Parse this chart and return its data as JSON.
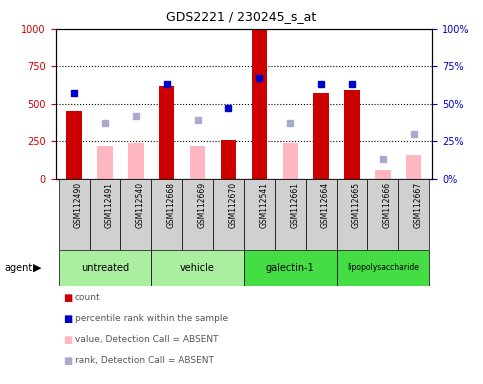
{
  "title": "GDS2221 / 230245_s_at",
  "samples": [
    "GSM112490",
    "GSM112491",
    "GSM112540",
    "GSM112668",
    "GSM112669",
    "GSM112670",
    "GSM112541",
    "GSM112661",
    "GSM112664",
    "GSM112665",
    "GSM112666",
    "GSM112667"
  ],
  "count_values": [
    450,
    null,
    null,
    620,
    null,
    260,
    990,
    null,
    570,
    590,
    null,
    null
  ],
  "absent_value_values": [
    null,
    215,
    240,
    null,
    215,
    null,
    null,
    235,
    null,
    null,
    55,
    160
  ],
  "percentile_rank": [
    57,
    null,
    null,
    63,
    null,
    47,
    67,
    null,
    63,
    63,
    null,
    null
  ],
  "absent_rank_values": [
    null,
    37,
    42,
    null,
    39,
    null,
    null,
    37,
    null,
    null,
    13,
    30
  ],
  "ylim_left": [
    0,
    1000
  ],
  "ylim_right": [
    0,
    100
  ],
  "yticks_left": [
    0,
    250,
    500,
    750,
    1000
  ],
  "yticks_right": [
    0,
    25,
    50,
    75,
    100
  ],
  "count_color": "#CC0000",
  "absent_value_color": "#FFB6C1",
  "percentile_color": "#0000CC",
  "absent_rank_color": "#AAAACC",
  "group_boundaries": [
    {
      "name": "untreated",
      "start": 0,
      "end": 2,
      "color": "#AAEEA0"
    },
    {
      "name": "vehicle",
      "start": 3,
      "end": 5,
      "color": "#AAEEA0"
    },
    {
      "name": "galectin-1",
      "start": 6,
      "end": 8,
      "color": "#44DD44"
    },
    {
      "name": "lipopolysaccharide",
      "start": 9,
      "end": 11,
      "color": "#44DD44"
    }
  ],
  "legend_items": [
    {
      "label": "count",
      "color": "#CC0000"
    },
    {
      "label": "percentile rank within the sample",
      "color": "#0000CC"
    },
    {
      "label": "value, Detection Call = ABSENT",
      "color": "#FFB6C1"
    },
    {
      "label": "rank, Detection Call = ABSENT",
      "color": "#AAAACC"
    }
  ]
}
